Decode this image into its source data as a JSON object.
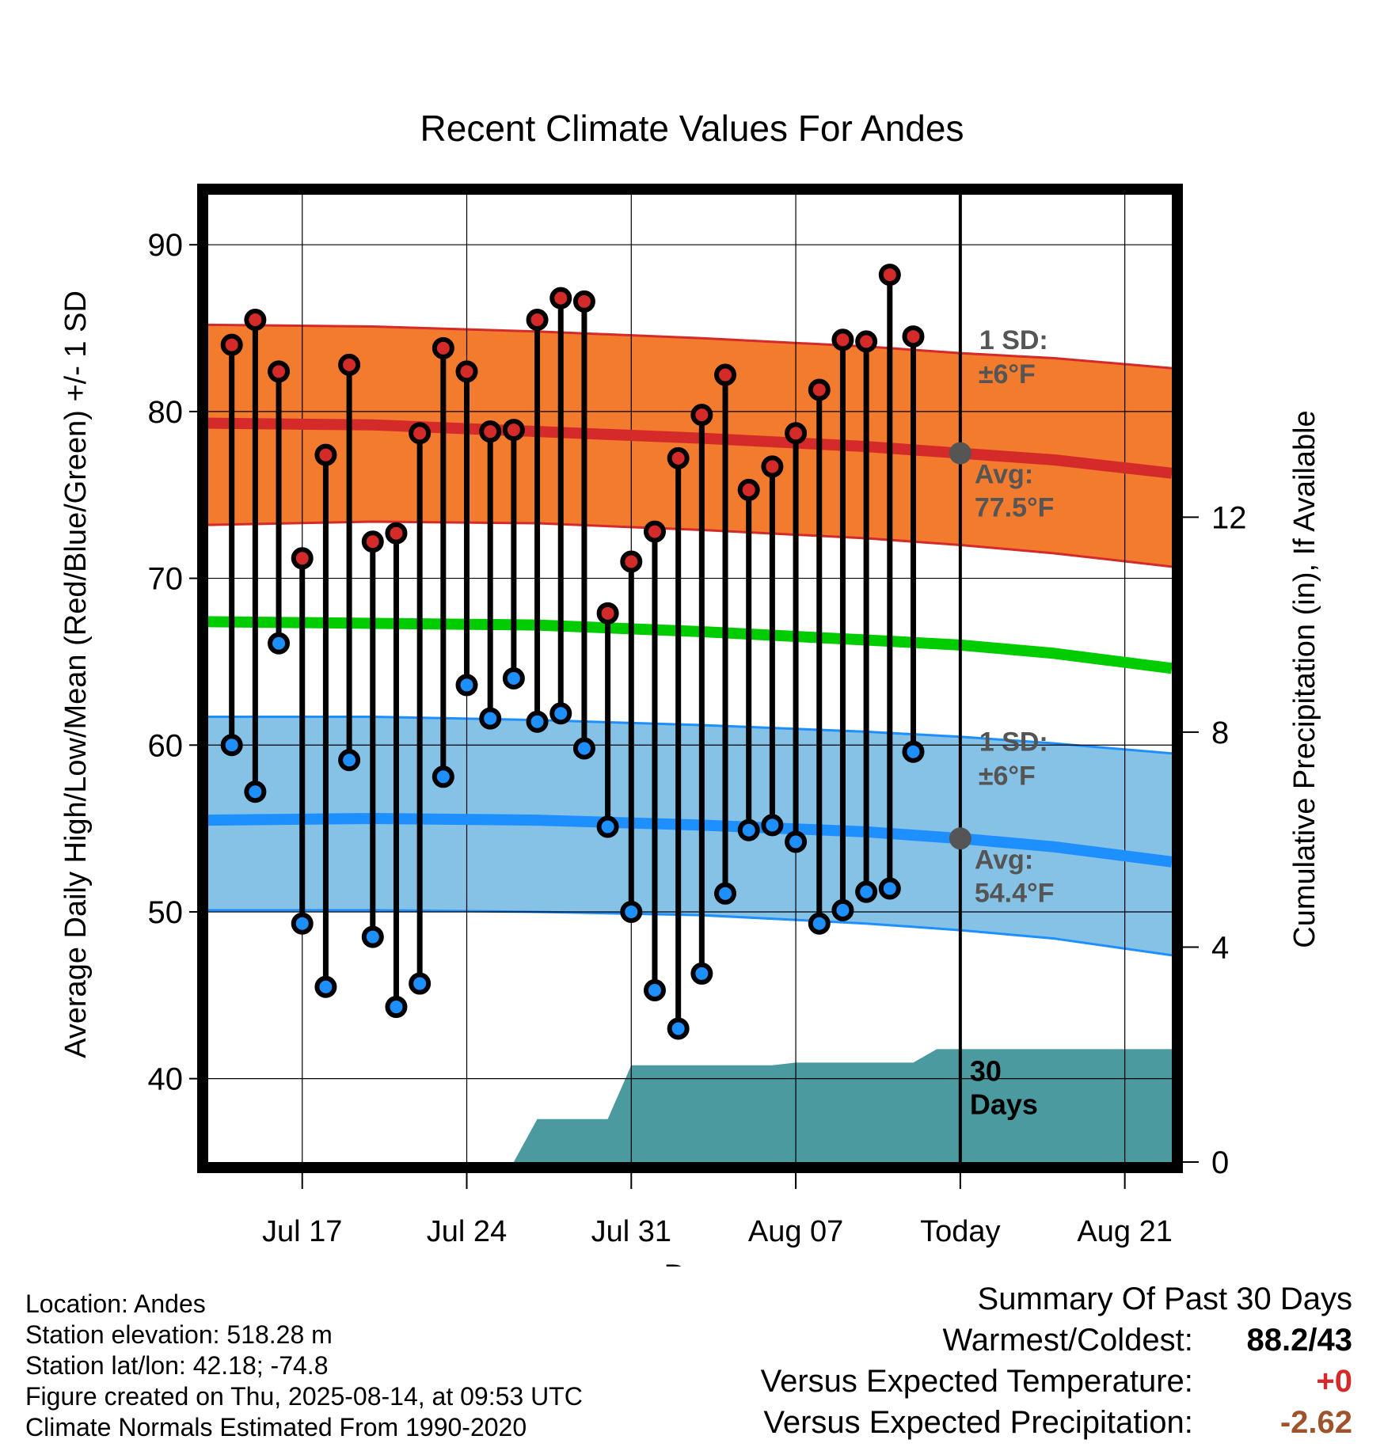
{
  "chart_data": {
    "type": "line",
    "title": "Recent Climate Values For Andes",
    "xlabel": "Day",
    "ylabel": "Average Daily High/Low/Mean (Red/Blue/Green) +/- 1 SD",
    "y2label": "Cumulative Precipitation (in), If Available",
    "ylim": [
      35,
      93
    ],
    "y2lim": [
      0,
      18
    ],
    "yticks": [
      "40",
      "50",
      "60",
      "70",
      "80",
      "90"
    ],
    "y2ticks": [
      "0",
      "4",
      "8",
      "12"
    ],
    "xticks": [
      {
        "label": "Jul 17",
        "day": "2025-07-17"
      },
      {
        "label": "Jul 24",
        "day": "2025-07-24"
      },
      {
        "label": "Jul 31",
        "day": "2025-07-31"
      },
      {
        "label": "Aug 07",
        "day": "2025-08-07"
      },
      {
        "label": "Today",
        "day": "2025-08-14"
      },
      {
        "label": "Aug 21",
        "day": "2025-08-21"
      }
    ],
    "xrange": [
      "2025-07-13",
      "2025-08-23"
    ],
    "grid": true,
    "today": "2025-08-14",
    "observed": {
      "dates": [
        "2025-07-14",
        "2025-07-15",
        "2025-07-16",
        "2025-07-17",
        "2025-07-18",
        "2025-07-19",
        "2025-07-20",
        "2025-07-21",
        "2025-07-22",
        "2025-07-23",
        "2025-07-24",
        "2025-07-25",
        "2025-07-26",
        "2025-07-27",
        "2025-07-28",
        "2025-07-29",
        "2025-07-30",
        "2025-07-31",
        "2025-08-01",
        "2025-08-02",
        "2025-08-03",
        "2025-08-04",
        "2025-08-05",
        "2025-08-06",
        "2025-08-07",
        "2025-08-08",
        "2025-08-09",
        "2025-08-10",
        "2025-08-11",
        "2025-08-12",
        "2025-08-13"
      ],
      "high": [
        84.0,
        85.5,
        82.4,
        71.2,
        77.4,
        82.8,
        72.2,
        72.7,
        78.7,
        83.8,
        82.4,
        78.8,
        78.9,
        85.5,
        86.8,
        86.6,
        67.9,
        71.0,
        72.8,
        77.2,
        79.8,
        82.2,
        75.3,
        76.7,
        78.7,
        81.3,
        84.3,
        84.2,
        88.2,
        84.5,
        null
      ],
      "low": [
        60.0,
        57.2,
        66.1,
        49.3,
        45.5,
        59.1,
        48.5,
        44.3,
        45.7,
        58.1,
        63.6,
        61.6,
        64.0,
        61.4,
        61.9,
        59.8,
        55.1,
        50.0,
        45.3,
        43.0,
        46.3,
        51.1,
        54.9,
        55.2,
        54.2,
        49.3,
        50.1,
        51.2,
        51.4,
        59.6,
        null
      ]
    },
    "normals": {
      "dates": [
        "2025-07-13",
        "2025-07-20",
        "2025-07-27",
        "2025-08-03",
        "2025-08-10",
        "2025-08-14",
        "2025-08-18",
        "2025-08-23"
      ],
      "high_mean": [
        79.3,
        79.2,
        78.8,
        78.4,
        77.9,
        77.5,
        77.1,
        76.3
      ],
      "high_sd_upper": [
        85.2,
        85.1,
        84.8,
        84.4,
        83.9,
        83.5,
        83.2,
        82.6
      ],
      "high_sd_lower": [
        73.2,
        73.4,
        73.3,
        72.9,
        72.4,
        72.0,
        71.5,
        70.7
      ],
      "low_mean": [
        55.5,
        55.6,
        55.5,
        55.2,
        54.8,
        54.4,
        53.9,
        53.0
      ],
      "low_sd_upper": [
        61.7,
        61.7,
        61.5,
        61.2,
        60.8,
        60.5,
        60.1,
        59.5
      ],
      "low_sd_lower": [
        50.1,
        50.1,
        50.0,
        49.8,
        49.3,
        48.9,
        48.4,
        47.4
      ],
      "mean": [
        67.4,
        67.3,
        67.2,
        66.8,
        66.3,
        66.0,
        65.5,
        64.6
      ]
    },
    "precipitation": {
      "dates": [
        "2025-07-13",
        "2025-07-26",
        "2025-07-27",
        "2025-07-30",
        "2025-07-31",
        "2025-08-06",
        "2025-08-07",
        "2025-08-12",
        "2025-08-13",
        "2025-08-23"
      ],
      "cumulative_in": [
        0,
        0,
        0.8,
        0.8,
        1.8,
        1.8,
        1.85,
        1.85,
        2.1,
        2.1
      ]
    },
    "annotations": {
      "high_sd_title": "1 SD:",
      "high_sd_value": "±6°F",
      "high_avg_title": "Avg:",
      "high_avg_value": "77.5°F",
      "low_sd_title": "1 SD:",
      "low_sd_value": "±6°F",
      "low_avg_title": "Avg:",
      "low_avg_value": "54.4°F",
      "precip_line1": "30",
      "precip_line2": "Days"
    },
    "colors": {
      "high_band": "#f37b2e",
      "high_line": "#d42a2a",
      "low_band": "#86c1e6",
      "low_line": "#1e8fff",
      "mean_line": "#00cc00",
      "precip": "#4a9aa0",
      "high_marker": "#d42a2a",
      "low_marker": "#1e8fff",
      "annotation": "#555555"
    }
  },
  "info": {
    "location": "Location: Andes",
    "elevation": "Station elevation: 518.28 m",
    "latlon": "Station lat/lon: 42.18; -74.8",
    "created": "Figure created on Thu, 2025-08-14, at 09:53 UTC",
    "normals": "Climate Normals Estimated From 1990-2020"
  },
  "summary": {
    "title": "Summary Of Past 30 Days",
    "warm_cold_label": "Warmest/Coldest:",
    "warm_cold_value": "88.2/43",
    "temp_label": "Versus Expected Temperature:",
    "temp_value": "+0",
    "temp_color": "#d42a2a",
    "precip_label": "Versus Expected Precipitation:",
    "precip_value": "-2.62",
    "precip_color": "#a0522d"
  }
}
